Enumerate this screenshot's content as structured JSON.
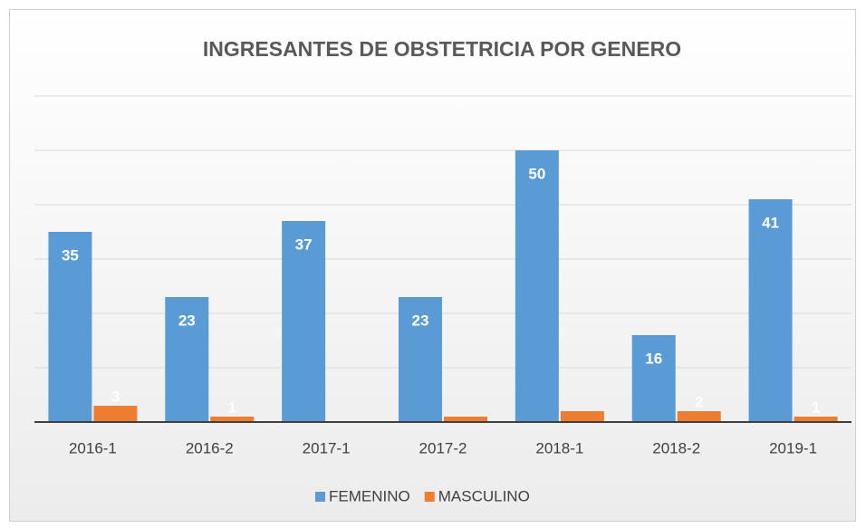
{
  "chart_data": {
    "type": "bar",
    "title": "INGRESANTES DE OBSTETRICIA POR GENERO",
    "categories": [
      "2016-1",
      "2016-2",
      "2017-1",
      "2017-2",
      "2018-1",
      "2018-2",
      "2019-1"
    ],
    "series": [
      {
        "name": "FEMENINO",
        "color": "#5b9bd5",
        "values": [
          35,
          23,
          37,
          23,
          50,
          16,
          41
        ]
      },
      {
        "name": "MASCULINO",
        "color": "#ed7d31",
        "values": [
          3,
          1,
          0,
          1,
          2,
          2,
          1
        ],
        "value_labels": [
          "3",
          "1",
          null,
          null,
          null,
          "2",
          "1"
        ]
      }
    ],
    "ylim": [
      0,
      60
    ],
    "yticks": [
      0,
      10,
      20,
      30,
      40,
      50,
      60
    ],
    "grid": true,
    "legend": "bottom"
  }
}
